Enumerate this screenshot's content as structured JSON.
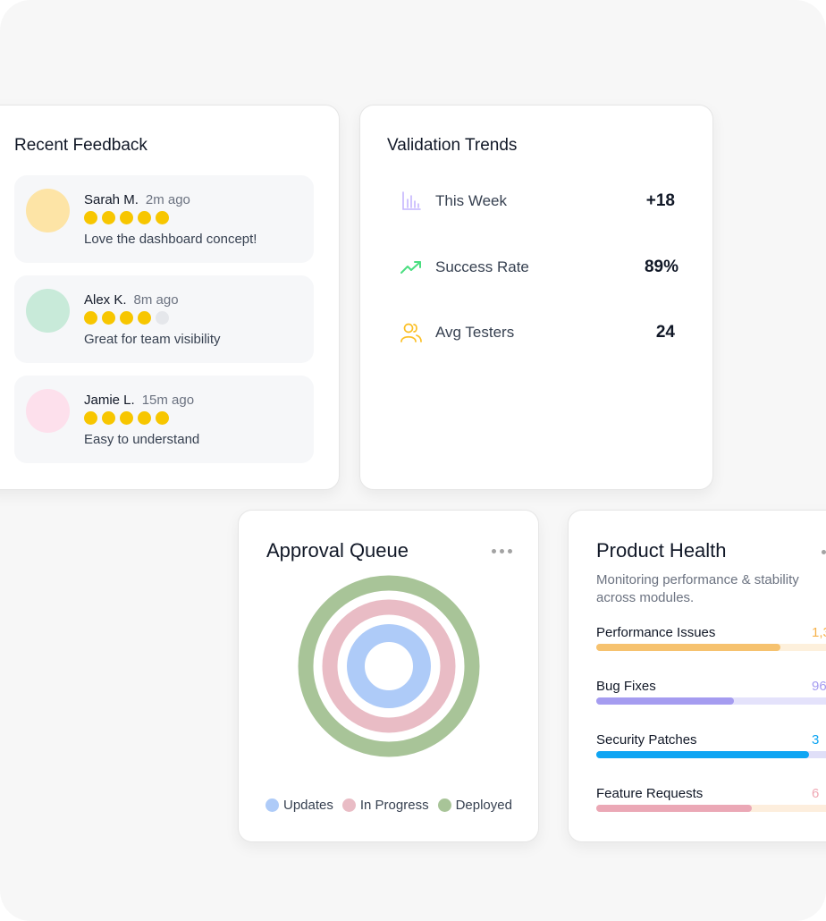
{
  "feedback": {
    "title": "Recent Feedback",
    "items": [
      {
        "name": "Sarah M.",
        "time": "2m ago",
        "rating": 5,
        "comment": "Love the dashboard concept!",
        "avatar_color": "#fde4a6"
      },
      {
        "name": "Alex K.",
        "time": "8m ago",
        "rating": 4,
        "comment": "Great for team visibility",
        "avatar_color": "#c8ead9"
      },
      {
        "name": "Jamie L.",
        "time": "15m ago",
        "rating": 5,
        "comment": "Easy to understand",
        "avatar_color": "#fde0ec"
      }
    ]
  },
  "trends": {
    "title": "Validation Trends",
    "rows": [
      {
        "label": "This Week",
        "value": "+18",
        "icon": "bar-chart-icon"
      },
      {
        "label": "Success Rate",
        "value": "89%",
        "icon": "trending-up-icon"
      },
      {
        "label": "Avg Testers",
        "value": "24",
        "icon": "users-icon"
      }
    ]
  },
  "approval": {
    "title": "Approval Queue",
    "legend": [
      {
        "label": "Updates",
        "color": "#aecbf8"
      },
      {
        "label": "In Progress",
        "color": "#e9bcc5"
      },
      {
        "label": "Deployed",
        "color": "#a8c498"
      }
    ]
  },
  "health": {
    "title": "Product Health",
    "subtitle": "Monitoring performance & stability across modules.",
    "metrics": [
      {
        "label": "Performance Issues",
        "value": "1,3",
        "fill": 0.71,
        "color": "#f6c26f",
        "track": "#fdf0dc",
        "value_color": "#f6b24a"
      },
      {
        "label": "Bug Fixes",
        "value": "96",
        "fill": 0.53,
        "color": "#a59cf0",
        "track": "#e4e2fb",
        "value_color": "#a59cf0"
      },
      {
        "label": "Security Patches",
        "value": "3",
        "fill": 0.82,
        "color": "#0ea5f3",
        "track": "#e0dff8",
        "value_color": "#0ea5f3"
      },
      {
        "label": "Feature Requests",
        "value": "6",
        "fill": 0.6,
        "color": "#eba8b6",
        "track": "#fdeedd",
        "value_color": "#f0a8b4"
      }
    ]
  }
}
